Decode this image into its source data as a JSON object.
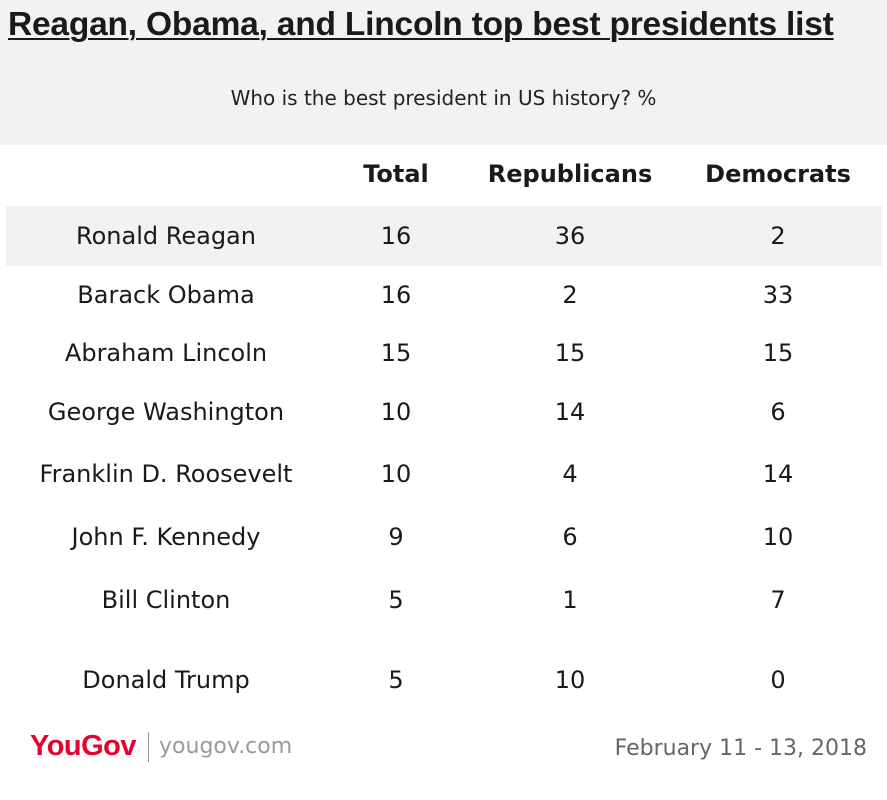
{
  "title": "Reagan, Obama, and Lincoln top best presidents list",
  "subtitle": "Who is the best president in US history? %",
  "chart_data": {
    "type": "table",
    "title": "Reagan, Obama, and Lincoln top best presidents list",
    "subtitle": "Who is the best president in US history? %",
    "columns": [
      "Total",
      "Republicans",
      "Democrats"
    ],
    "rows": [
      {
        "name": "Ronald Reagan",
        "values": [
          "16",
          "36",
          "2"
        ]
      },
      {
        "name": "Barack Obama",
        "values": [
          "16",
          "2",
          "33"
        ]
      },
      {
        "name": "Abraham Lincoln",
        "values": [
          "15",
          "15",
          "15"
        ]
      },
      {
        "name": "George Washington",
        "values": [
          "10",
          "14",
          "6"
        ]
      },
      {
        "name": "Franklin D. Roosevelt",
        "values": [
          "10",
          "4",
          "14"
        ]
      },
      {
        "name": "John F. Kennedy",
        "values": [
          "9",
          "6",
          "10"
        ]
      },
      {
        "name": "Bill Clinton",
        "values": [
          "5",
          "1",
          "7"
        ]
      },
      {
        "name": "Donald Trump",
        "values": [
          "5",
          "10",
          "0"
        ]
      }
    ]
  },
  "footer": {
    "logo": "YouGov",
    "site": "yougov.com",
    "date": "February 11 - 13, 2018"
  },
  "colors": {
    "band": "#f2f2f2",
    "brand": "#e4032e"
  }
}
